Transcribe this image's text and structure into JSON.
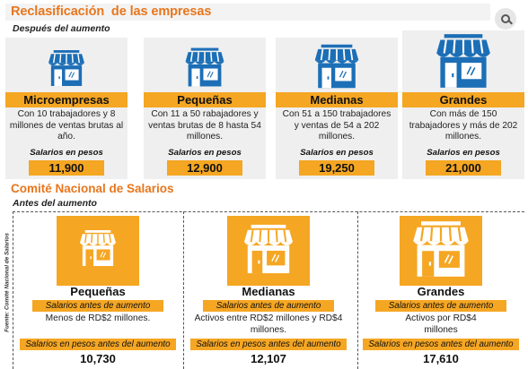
{
  "header": {
    "title": "Reclasificación  de las empresas",
    "subtitle": "Después del aumento"
  },
  "categories": [
    {
      "name": "Microempresas",
      "description": "Con 10 trabajadores  y 8 millones de ventas brutas al año.",
      "salary_label": "Salarios en pesos",
      "salary": "11,900"
    },
    {
      "name": "Pequeñas",
      "description": "Con 11 a 50 rabajadores y ventas brutas de  8 hasta 54 millones.",
      "salary_label": "Salarios en pesos",
      "salary": "12,900"
    },
    {
      "name": "Medianas",
      "description": "Con 51 a 150 trabajadores y ventas de 54 a 202 millones.",
      "salary_label": "Salarios en pesos",
      "salary": "19,250"
    },
    {
      "name": "Grandes",
      "description": "Con más de 150 trabajadores y más de 202 millones.",
      "salary_label": "Salarios en pesos",
      "salary": "21,000"
    }
  ],
  "section2": {
    "title": "Comité Nacional de Salarios",
    "subtitle": "Antes del aumento",
    "source": "Fuente: Comité Nacional de Salarios"
  },
  "before": [
    {
      "name": "Pequeñas",
      "pill1": "Salarios antes de aumento",
      "description": "Menos de RD$2 millones.",
      "pill2": "Salarios en pesos antes del aumento",
      "value": "10,730"
    },
    {
      "name": "Medianas",
      "pill1": "Salarios antes de aumento",
      "description": "Activos entre RD$2 millones y RD$4 millones.",
      "pill2": "Salarios en pesos antes del aumento",
      "value": "12,107"
    },
    {
      "name": "Grandes",
      "pill1": "Salarios antes de aumento",
      "description": "Activos por RD$4 millones",
      "pill2": "Salarios en pesos antes del aumento",
      "value": "17,610"
    }
  ],
  "colors": {
    "accent": "#e8761d",
    "highlight": "#f5a623",
    "store_blue": "#1c6fb6",
    "card_bg": "#efefef"
  },
  "icons": {
    "store": "store-icon",
    "top_right": "search-icon"
  }
}
